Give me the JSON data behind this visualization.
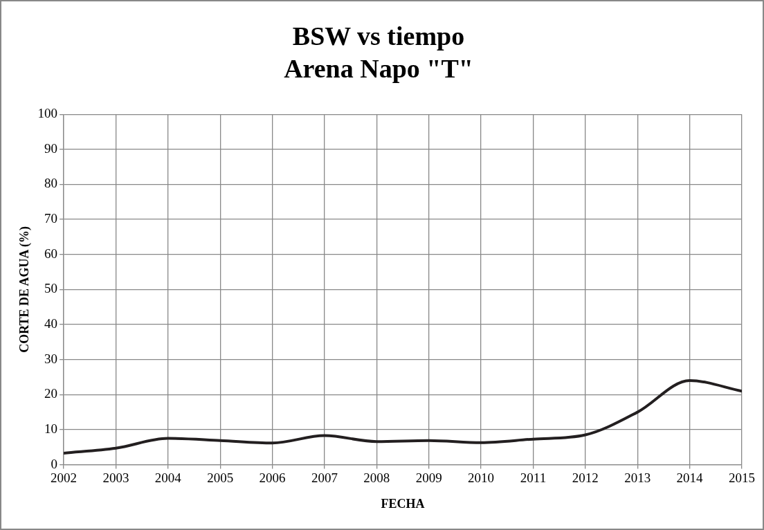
{
  "chart_data": {
    "type": "line",
    "title": "BSW vs tiempo",
    "subtitle": "Arena Napo \"T\"",
    "xlabel": "FECHA",
    "ylabel": "CORTE DE AGUA (%)",
    "x": [
      2002,
      2003,
      2004,
      2005,
      2006,
      2007,
      2008,
      2009,
      2010,
      2011,
      2012,
      2013,
      2014,
      2015
    ],
    "series": [
      {
        "color": "#231f20",
        "values": [
          3.3,
          4.7,
          7.5,
          6.9,
          6.2,
          8.3,
          6.6,
          6.9,
          6.3,
          7.3,
          8.5,
          15,
          24,
          21
        ]
      }
    ],
    "xlim": [
      2002,
      2015
    ],
    "xticks": [
      2002,
      2003,
      2004,
      2005,
      2006,
      2007,
      2008,
      2009,
      2010,
      2011,
      2012,
      2013,
      2014,
      2015
    ],
    "ylim": [
      0,
      100
    ],
    "yticks": [
      0,
      10,
      20,
      30,
      40,
      50,
      60,
      70,
      80,
      90,
      100
    ],
    "grid": true,
    "legend": false,
    "marker": "none",
    "line_style": "solid"
  }
}
